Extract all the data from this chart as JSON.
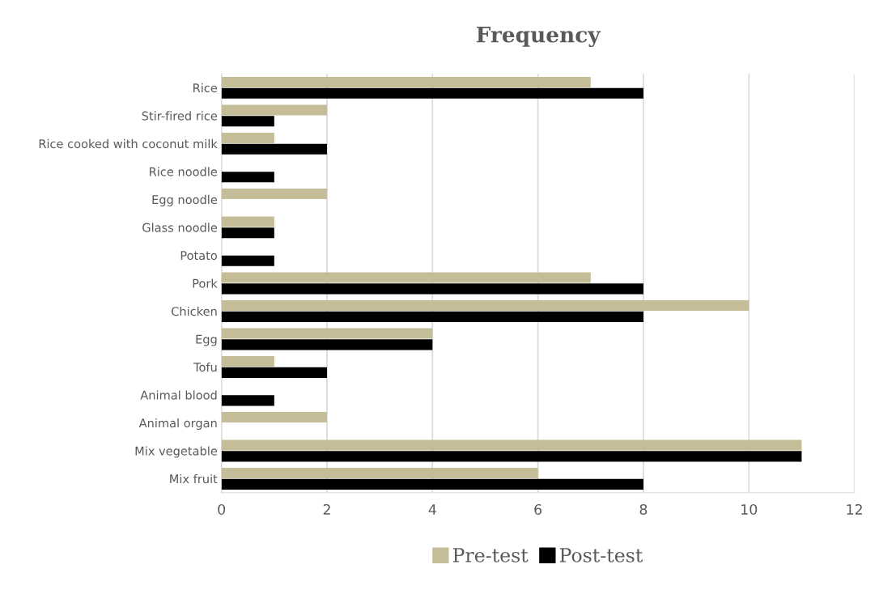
{
  "chart_data": {
    "type": "bar",
    "orientation": "horizontal",
    "title": "Frequency",
    "categories": [
      "Rice",
      "Stir-fired rice",
      "Rice cooked with coconut milk",
      "Rice noodle",
      "Egg noodle",
      "Glass noodle",
      "Potato",
      "Pork",
      "Chicken",
      "Egg",
      "Tofu",
      "Animal blood",
      "Animal organ",
      "Mix vegetable",
      "Mix fruit"
    ],
    "series": [
      {
        "name": "Pre-test",
        "color": "#c4bd97",
        "values": [
          7,
          2,
          1,
          0,
          2,
          1,
          0,
          7,
          10,
          4,
          1,
          0,
          2,
          11,
          6
        ]
      },
      {
        "name": "Post-test",
        "color": "#000000",
        "values": [
          8,
          1,
          2,
          1,
          0,
          1,
          1,
          8,
          8,
          4,
          2,
          1,
          0,
          11,
          8
        ]
      }
    ],
    "xlim": [
      0,
      12
    ],
    "xticks": [
      0,
      2,
      4,
      6,
      8,
      10,
      12
    ],
    "grid": "x",
    "legend": "bottom"
  }
}
